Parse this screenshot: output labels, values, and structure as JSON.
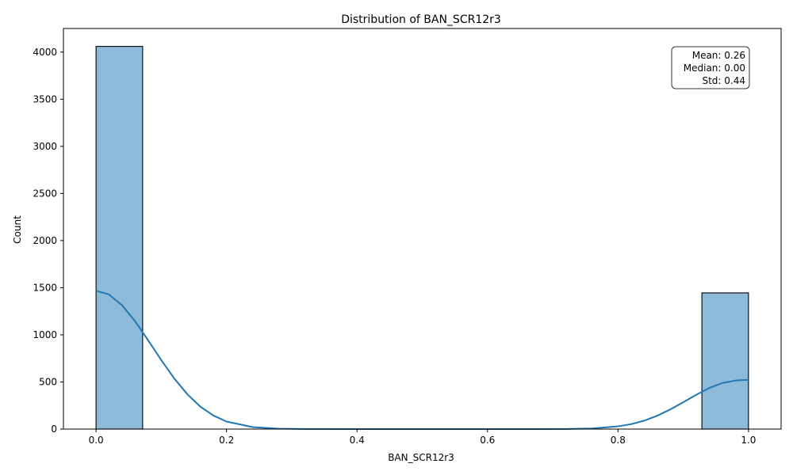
{
  "chart_data": {
    "type": "bar",
    "title": "Distribution of BAN_SCR12r3",
    "xlabel": "BAN_SCR12r3",
    "ylabel": "Count",
    "xlim": [
      -0.05,
      1.05
    ],
    "ylim": [
      0,
      4250
    ],
    "xticks": [
      0.0,
      0.2,
      0.4,
      0.6,
      0.8,
      1.0
    ],
    "xtick_labels": [
      "0.0",
      "0.2",
      "0.4",
      "0.6",
      "0.8",
      "1.0"
    ],
    "yticks": [
      0,
      500,
      1000,
      1500,
      2000,
      2500,
      3000,
      3500,
      4000
    ],
    "ytick_labels": [
      "0",
      "500",
      "1000",
      "1500",
      "2000",
      "2500",
      "3000",
      "3500",
      "4000"
    ],
    "bins": [
      {
        "x0": 0.0,
        "x1": 0.0714,
        "count": 4060
      },
      {
        "x0": 0.9286,
        "x1": 1.0,
        "count": 1445
      }
    ],
    "kde": {
      "x": [
        0.0,
        0.02,
        0.04,
        0.06,
        0.08,
        0.1,
        0.12,
        0.14,
        0.16,
        0.18,
        0.2,
        0.24,
        0.28,
        0.32,
        0.4,
        0.5,
        0.6,
        0.68,
        0.72,
        0.76,
        0.8,
        0.82,
        0.84,
        0.86,
        0.88,
        0.9,
        0.92,
        0.94,
        0.96,
        0.98,
        1.0
      ],
      "y": [
        1468,
        1427,
        1312,
        1142,
        940,
        731,
        536,
        369,
        237,
        143,
        80,
        21,
        4,
        1,
        0,
        0,
        0,
        0,
        1,
        6,
        29,
        52,
        89,
        141,
        208,
        285,
        364,
        436,
        489,
        515,
        523
      ]
    },
    "bar_color": "#8fbbdb",
    "bar_edge_color": "#000000",
    "kde_color": "#1f77b4",
    "grid": false,
    "legend": "none",
    "stats_box": {
      "position": "top-right",
      "lines": [
        "Mean: 0.26",
        "Median: 0.00",
        "Std: 0.44"
      ]
    }
  }
}
